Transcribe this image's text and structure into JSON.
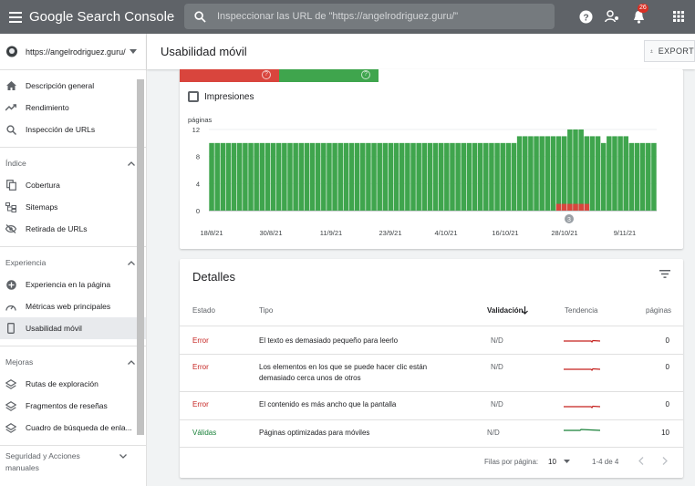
{
  "topbar": {
    "logo": "Google Search Console",
    "search_placeholder": "Inspeccionar las URL de \"https://angelrodriguez.guru/\"",
    "notif_count": "26"
  },
  "sidebar": {
    "property": "https://angelrodriguez.guru/",
    "items_top": [
      "Descripción general",
      "Rendimiento",
      "Inspección de URLs"
    ],
    "section_indice": "Índice",
    "items_indice": [
      "Cobertura",
      "Sitemaps",
      "Retirada de URLs"
    ],
    "section_experiencia": "Experiencia",
    "items_experiencia": [
      "Experiencia en la página",
      "Métricas web principales",
      "Usabilidad móvil"
    ],
    "section_mejoras": "Mejoras",
    "items_mejoras": [
      "Rutas de exploración",
      "Fragmentos de reseñas",
      "Cuadro de búsqueda de enla..."
    ],
    "section_seguridad_1": "Seguridad y Acciones",
    "section_seguridad_2": "manuales"
  },
  "header": {
    "title": "Usabilidad móvil",
    "export_label": "EXPORT"
  },
  "chart_card": {
    "impresiones_label": "Impresiones",
    "tile_question": "?",
    "annotation": "3"
  },
  "chart_data": {
    "type": "bar",
    "ylabel": "páginas",
    "ylim": [
      0,
      12
    ],
    "yticks": [
      0,
      4,
      8,
      12
    ],
    "xticks": [
      "18/8/21",
      "30/8/21",
      "11/9/21",
      "23/9/21",
      "4/10/21",
      "16/10/21",
      "28/10/21",
      "9/11/21"
    ],
    "series": [
      {
        "color": "#3fa54d",
        "values": [
          10,
          10,
          10,
          10,
          10,
          10,
          10,
          10,
          10,
          10,
          10,
          10,
          10,
          10,
          10,
          10,
          10,
          10,
          10,
          10,
          10,
          10,
          10,
          10,
          10,
          10,
          10,
          10,
          10,
          10,
          10,
          10,
          10,
          10,
          10,
          10,
          10,
          10,
          10,
          10,
          10,
          10,
          10,
          10,
          10,
          10,
          10,
          10,
          10,
          10,
          10,
          10,
          10,
          10,
          10,
          11,
          11,
          11,
          11,
          11,
          11,
          11,
          11,
          11,
          12,
          12,
          12,
          11,
          11,
          11,
          10,
          11,
          11,
          11,
          11,
          10,
          10,
          10,
          10,
          10
        ]
      },
      {
        "color": "#d9453d",
        "values": [
          0,
          0,
          0,
          0,
          0,
          0,
          0,
          0,
          0,
          0,
          0,
          0,
          0,
          0,
          0,
          0,
          0,
          0,
          0,
          0,
          0,
          0,
          0,
          0,
          0,
          0,
          0,
          0,
          0,
          0,
          0,
          0,
          0,
          0,
          0,
          0,
          0,
          0,
          0,
          0,
          0,
          0,
          0,
          0,
          0,
          0,
          0,
          0,
          0,
          0,
          0,
          0,
          0,
          0,
          0,
          0,
          0,
          0,
          0,
          0,
          0,
          0,
          1,
          1,
          1,
          1,
          1,
          1,
          0,
          0,
          0,
          0,
          0,
          0,
          0,
          0,
          0,
          0,
          0,
          0
        ]
      }
    ]
  },
  "details": {
    "title": "Detalles",
    "headers": {
      "estado": "Estado",
      "tipo": "Tipo",
      "validacion": "Validación",
      "tendencia": "Tendencia",
      "paginas": "páginas"
    },
    "rows": [
      {
        "estado": "Error",
        "tipo1": "El texto es demasiado pequeño para leerlo",
        "tipo2": "",
        "validacion": "N/D",
        "paginas": "0"
      },
      {
        "estado": "Error",
        "tipo1": "Los elementos en los que se puede hacer clic están",
        "tipo2": "demasiado cerca unos de otros",
        "validacion": "N/D",
        "paginas": "0"
      },
      {
        "estado": "Error",
        "tipo1": "El contenido es más ancho que la pantalla",
        "tipo2": "",
        "validacion": "N/D",
        "paginas": "0"
      },
      {
        "estado": "Válidas",
        "tipo1": "Páginas optimizadas para móviles",
        "tipo2": "",
        "validacion": "N/D",
        "paginas": "10"
      }
    ],
    "rows_per_page_label": "Filas por página:",
    "rows_per_page": "10",
    "range": "1-4 de 4"
  },
  "colors": {
    "error": "#d9453d",
    "valid": "#3fa54d",
    "accent_red_text": "#c5221f",
    "accent_green_text": "#188038"
  }
}
